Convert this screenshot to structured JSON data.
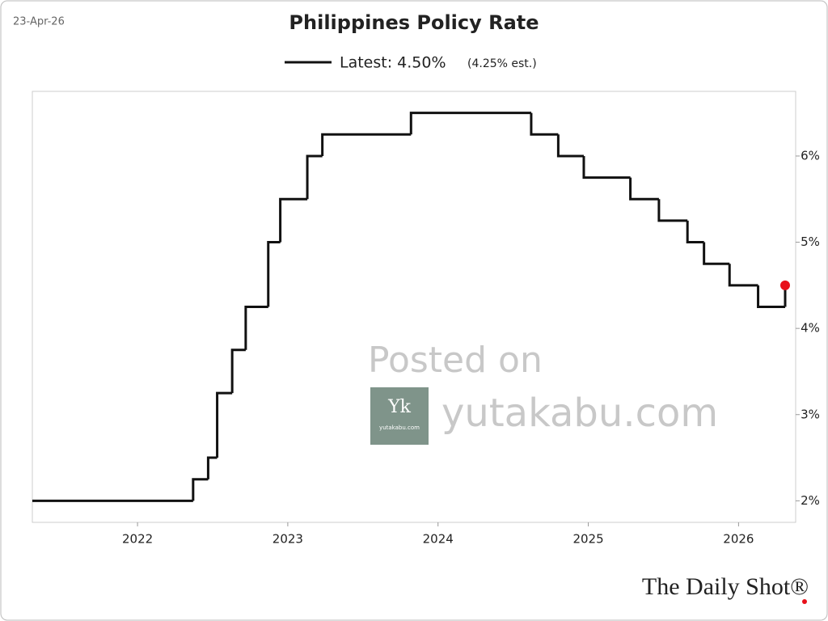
{
  "chart_data": {
    "type": "step",
    "title": "Philippines Policy Rate",
    "date": "23-Apr-26",
    "source": "The Daily Shot®",
    "watermark": {
      "line1": "Posted on",
      "line2": "yutakabu.com",
      "logo": "Yk",
      "logo_sub": "yutakabu.com"
    },
    "legend_note": "(4.25% est.)",
    "x": [
      2021.3,
      2022.37,
      2022.47,
      2022.53,
      2022.63,
      2022.72,
      2022.87,
      2022.95,
      2023.13,
      2023.23,
      2023.82,
      2024.62,
      2024.8,
      2024.97,
      2025.28,
      2025.47,
      2025.66,
      2025.77,
      2025.94,
      2026.13,
      2026.31
    ],
    "series": [
      {
        "name": "Latest: 4.50%",
        "color": "#111111",
        "marker_color": "#e8101a",
        "values": [
          2.0,
          2.25,
          2.5,
          3.25,
          3.75,
          4.25,
          5.0,
          5.5,
          6.0,
          6.25,
          6.5,
          6.25,
          6.0,
          5.75,
          5.5,
          5.25,
          5.0,
          4.75,
          4.5,
          4.25,
          4.5
        ]
      }
    ],
    "xlim": [
      2021.3,
      2026.38
    ],
    "xticks": [
      2022,
      2023,
      2024,
      2025,
      2026
    ],
    "ylim": [
      1.75,
      6.75
    ],
    "yticks": [
      {
        "value": 2,
        "label": "2%"
      },
      {
        "value": 3,
        "label": "3%"
      },
      {
        "value": 4,
        "label": "4%"
      },
      {
        "value": 5,
        "label": "5%"
      },
      {
        "value": 6,
        "label": "6%"
      }
    ]
  }
}
